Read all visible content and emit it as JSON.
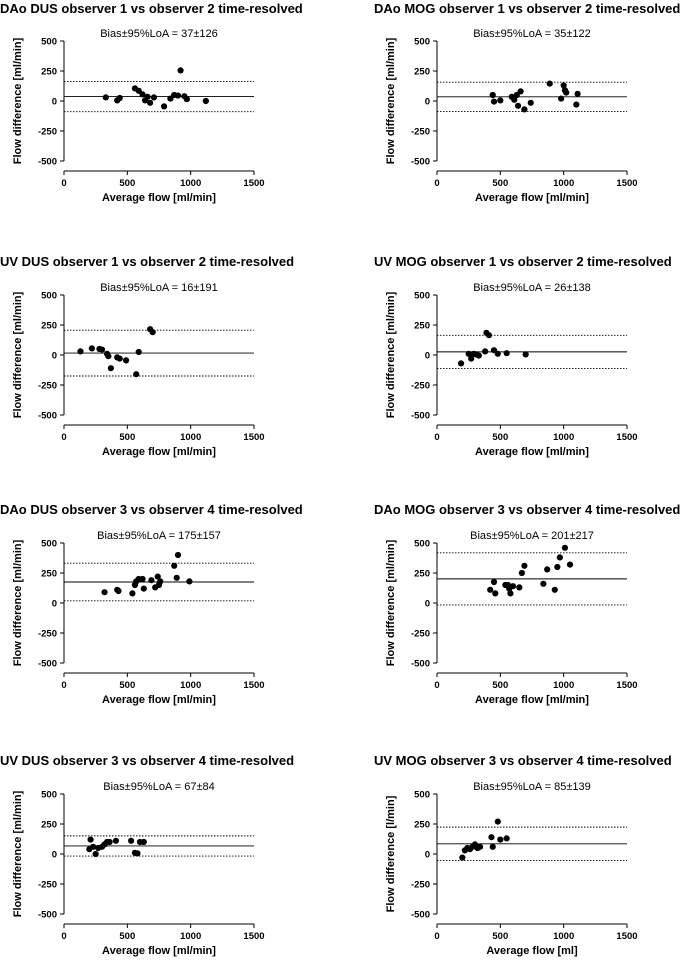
{
  "chart_data": [
    {
      "type": "scatter",
      "title": "DAo DUS observer 1 vs observer 2 time-resolved",
      "annotation": "Bias±95%LoA = 37±126",
      "xlabel": "Average flow [ml/min]",
      "ylabel": "Flow difference [ml/min]",
      "xlim": [
        0,
        1500
      ],
      "ylim": [
        -500,
        500
      ],
      "xticks": [
        0,
        500,
        1000,
        1500
      ],
      "xtick_labels": [
        "0",
        "500",
        "1000",
        "1500"
      ],
      "yticks": [
        -500,
        -250,
        0,
        250,
        500
      ],
      "ytick_labels": [
        "-500",
        "-250",
        "0",
        "250",
        "500"
      ],
      "bias": 37,
      "loa_upper": 163,
      "loa_lower": -89,
      "points": [
        [
          330,
          30
        ],
        [
          420,
          5
        ],
        [
          440,
          25
        ],
        [
          560,
          105
        ],
        [
          590,
          85
        ],
        [
          620,
          55
        ],
        [
          640,
          5
        ],
        [
          660,
          35
        ],
        [
          680,
          -15
        ],
        [
          710,
          30
        ],
        [
          790,
          -45
        ],
        [
          840,
          20
        ],
        [
          870,
          50
        ],
        [
          900,
          45
        ],
        [
          920,
          255
        ],
        [
          950,
          40
        ],
        [
          970,
          15
        ],
        [
          1120,
          0
        ]
      ]
    },
    {
      "type": "scatter",
      "title": "DAo MOG observer 1 vs observer 2 time-resolved",
      "annotation": "Bias±95%LoA = 35±122",
      "xlabel": "Average flow [ml/min]",
      "ylabel": "Flow difference [ml/min]",
      "xlim": [
        0,
        1500
      ],
      "ylim": [
        -500,
        500
      ],
      "xticks": [
        0,
        500,
        1000,
        1500
      ],
      "xtick_labels": [
        "0",
        "500",
        "1000",
        "1500"
      ],
      "yticks": [
        -500,
        -250,
        0,
        250,
        500
      ],
      "ytick_labels": [
        "-500",
        "-250",
        "0",
        "250",
        "500"
      ],
      "bias": 35,
      "loa_upper": 157,
      "loa_lower": -87,
      "points": [
        [
          440,
          50
        ],
        [
          450,
          -5
        ],
        [
          500,
          5
        ],
        [
          590,
          35
        ],
        [
          610,
          10
        ],
        [
          630,
          50
        ],
        [
          640,
          -40
        ],
        [
          660,
          80
        ],
        [
          690,
          -70
        ],
        [
          740,
          -15
        ],
        [
          890,
          145
        ],
        [
          980,
          20
        ],
        [
          1000,
          130
        ],
        [
          1010,
          90
        ],
        [
          1020,
          70
        ],
        [
          1100,
          -30
        ],
        [
          1110,
          60
        ]
      ]
    },
    {
      "type": "scatter",
      "title": "UV DUS observer 1 vs observer 2 time-resolved",
      "annotation": "Bias±95%LoA = 16±191",
      "xlabel": "Average flow [ml/min]",
      "ylabel": "Flow difference [ml/min]",
      "xlim": [
        0,
        1500
      ],
      "ylim": [
        -500,
        500
      ],
      "xticks": [
        0,
        500,
        1000,
        1500
      ],
      "xtick_labels": [
        "0",
        "500",
        "1000",
        "1500"
      ],
      "yticks": [
        -500,
        -250,
        0,
        250,
        500
      ],
      "ytick_labels": [
        "-500",
        "-250",
        "0",
        "250",
        "500"
      ],
      "bias": 16,
      "loa_upper": 207,
      "loa_lower": -175,
      "points": [
        [
          130,
          30
        ],
        [
          220,
          55
        ],
        [
          280,
          50
        ],
        [
          300,
          45
        ],
        [
          340,
          10
        ],
        [
          350,
          -10
        ],
        [
          370,
          -110
        ],
        [
          420,
          -20
        ],
        [
          440,
          -30
        ],
        [
          490,
          -45
        ],
        [
          570,
          -160
        ],
        [
          590,
          25
        ],
        [
          680,
          215
        ],
        [
          700,
          190
        ]
      ]
    },
    {
      "type": "scatter",
      "title": "UV MOG observer 1 vs observer 2 time-resolved",
      "annotation": "Bias±95%LoA = 26±138",
      "xlabel": "Average flow [ml/min]",
      "ylabel": "Flow difference [ml/min]",
      "xlim": [
        0,
        1500
      ],
      "ylim": [
        -500,
        500
      ],
      "xticks": [
        0,
        500,
        1000,
        1500
      ],
      "xtick_labels": [
        "0",
        "500",
        "1000",
        "1500"
      ],
      "yticks": [
        -500,
        -250,
        0,
        250,
        500
      ],
      "ytick_labels": [
        "-500",
        "-250",
        "0",
        "250",
        "500"
      ],
      "bias": 26,
      "loa_upper": 164,
      "loa_lower": -112,
      "points": [
        [
          190,
          -70
        ],
        [
          250,
          10
        ],
        [
          270,
          -30
        ],
        [
          290,
          10
        ],
        [
          310,
          5
        ],
        [
          330,
          -5
        ],
        [
          380,
          30
        ],
        [
          390,
          185
        ],
        [
          410,
          165
        ],
        [
          450,
          40
        ],
        [
          480,
          10
        ],
        [
          550,
          15
        ],
        [
          700,
          5
        ]
      ]
    },
    {
      "type": "scatter",
      "title": "DAo DUS observer 3 vs observer 4 time-resolved",
      "annotation": "Bias±95%LoA = 175±157",
      "xlabel": "Average flow [ml/min]",
      "ylabel": "Flow difference [ml/min]",
      "xlim": [
        0,
        1500
      ],
      "ylim": [
        -500,
        500
      ],
      "xticks": [
        0,
        500,
        1000,
        1500
      ],
      "xtick_labels": [
        "0",
        "500",
        "1000",
        "1500"
      ],
      "yticks": [
        -500,
        -250,
        0,
        250,
        500
      ],
      "ytick_labels": [
        "-500",
        "-250",
        "0",
        "250",
        "500"
      ],
      "bias": 175,
      "loa_upper": 332,
      "loa_lower": 18,
      "points": [
        [
          320,
          90
        ],
        [
          420,
          110
        ],
        [
          430,
          100
        ],
        [
          540,
          80
        ],
        [
          560,
          150
        ],
        [
          570,
          180
        ],
        [
          590,
          200
        ],
        [
          620,
          200
        ],
        [
          630,
          120
        ],
        [
          690,
          190
        ],
        [
          720,
          130
        ],
        [
          740,
          220
        ],
        [
          750,
          150
        ],
        [
          760,
          180
        ],
        [
          870,
          310
        ],
        [
          890,
          210
        ],
        [
          900,
          400
        ],
        [
          990,
          180
        ]
      ]
    },
    {
      "type": "scatter",
      "title": "DAo MOG observer 3 vs observer 4 time-resolved",
      "annotation": "Bias±95%LoA = 201±217",
      "xlabel": "Average flow [ml/min]",
      "ylabel": "Flow difference [ml/min]",
      "xlim": [
        0,
        1500
      ],
      "ylim": [
        -500,
        500
      ],
      "xticks": [
        0,
        500,
        1000,
        1500
      ],
      "xtick_labels": [
        "0",
        "500",
        "1000",
        "1500"
      ],
      "yticks": [
        -500,
        -250,
        0,
        250,
        500
      ],
      "ytick_labels": [
        "-500",
        "-250",
        "0",
        "250",
        "500"
      ],
      "bias": 201,
      "loa_upper": 418,
      "loa_lower": -16,
      "points": [
        [
          420,
          110
        ],
        [
          450,
          175
        ],
        [
          460,
          80
        ],
        [
          540,
          150
        ],
        [
          560,
          150
        ],
        [
          570,
          120
        ],
        [
          580,
          80
        ],
        [
          600,
          140
        ],
        [
          650,
          130
        ],
        [
          670,
          250
        ],
        [
          690,
          310
        ],
        [
          840,
          160
        ],
        [
          870,
          280
        ],
        [
          930,
          110
        ],
        [
          950,
          300
        ],
        [
          970,
          380
        ],
        [
          1010,
          460
        ],
        [
          1050,
          320
        ]
      ]
    },
    {
      "type": "scatter",
      "title": "UV DUS observer 3 vs observer 4 time-resolved",
      "annotation": "Bias±95%LoA = 67±84",
      "xlabel": "Average flow [ml/min]",
      "ylabel": "Flow difference [ml/min]",
      "xlim": [
        0,
        1500
      ],
      "ylim": [
        -500,
        500
      ],
      "xticks": [
        0,
        500,
        1000,
        1500
      ],
      "xtick_labels": [
        "0",
        "500",
        "1000",
        "1500"
      ],
      "yticks": [
        -500,
        -250,
        0,
        250,
        500
      ],
      "ytick_labels": [
        "-500",
        "-250",
        "0",
        "250",
        "500"
      ],
      "bias": 67,
      "loa_upper": 151,
      "loa_lower": -17,
      "points": [
        [
          200,
          40
        ],
        [
          210,
          120
        ],
        [
          230,
          60
        ],
        [
          250,
          0
        ],
        [
          270,
          50
        ],
        [
          300,
          60
        ],
        [
          320,
          80
        ],
        [
          340,
          100
        ],
        [
          360,
          100
        ],
        [
          410,
          110
        ],
        [
          530,
          110
        ],
        [
          560,
          10
        ],
        [
          580,
          5
        ],
        [
          600,
          100
        ],
        [
          630,
          100
        ]
      ]
    },
    {
      "type": "scatter",
      "title": "UV MOG observer 3 vs observer 4 time-resolved",
      "annotation": "Bias±95%LoA = 85±139",
      "xlabel": "Average flow [ml]",
      "ylabel": "Flow difference [l/min]",
      "xlim": [
        0,
        1500
      ],
      "ylim": [
        -500,
        500
      ],
      "xticks": [
        0,
        500,
        1000,
        1500
      ],
      "xtick_labels": [
        "0",
        "500",
        "1000",
        "1500"
      ],
      "yticks": [
        -500,
        -250,
        0,
        250,
        500
      ],
      "ytick_labels": [
        "-500",
        "-250",
        "0",
        "250",
        "500"
      ],
      "bias": 85,
      "loa_upper": 224,
      "loa_lower": -54,
      "points": [
        [
          200,
          -30
        ],
        [
          220,
          30
        ],
        [
          240,
          50
        ],
        [
          260,
          40
        ],
        [
          280,
          60
        ],
        [
          300,
          80
        ],
        [
          320,
          50
        ],
        [
          340,
          60
        ],
        [
          430,
          140
        ],
        [
          440,
          60
        ],
        [
          480,
          270
        ],
        [
          500,
          120
        ],
        [
          550,
          130
        ]
      ]
    }
  ]
}
